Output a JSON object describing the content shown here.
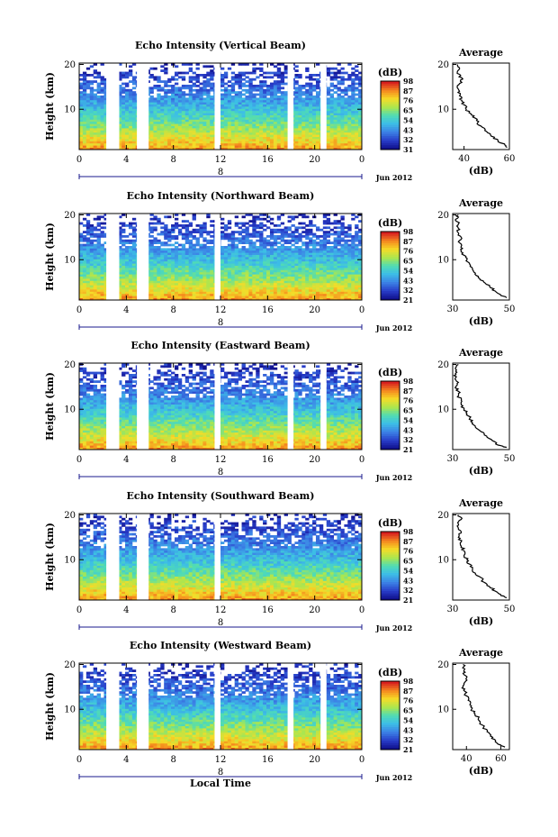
{
  "chart_data": [
    {
      "type": "heatmap",
      "title": "Echo Intensity (Vertical Beam)",
      "ylabel": "Height (km)",
      "yticks": [
        10,
        20
      ],
      "ylim": [
        1,
        20.3
      ],
      "xticks": [
        "0",
        "4",
        "8",
        "12",
        "16",
        "20",
        "0"
      ],
      "xlim": [
        0,
        24
      ],
      "day_label": "8",
      "month_label": "Jun 2012",
      "colorbar": {
        "label": "(dB)",
        "ticks": [
          "31",
          "32",
          "43",
          "54",
          "65",
          "76",
          "87",
          "98"
        ],
        "range": [
          31,
          98
        ]
      },
      "data_gaps_hours": [
        [
          2.3,
          3.4
        ],
        [
          4.9,
          5.9
        ],
        [
          11.5,
          12.0
        ],
        [
          17.7,
          18.2
        ],
        [
          20.5,
          21.0
        ]
      ],
      "average_profile": {
        "title": "Average",
        "xlabel": "(dB)",
        "xticks": [
          "40",
          "60"
        ],
        "xlim": [
          35,
          60
        ],
        "yticks": [
          "10",
          "20"
        ],
        "height_km": [
          1.5,
          2,
          3,
          4,
          5,
          6,
          7,
          8,
          9,
          10,
          11,
          12,
          13,
          14,
          15,
          16,
          17,
          18,
          19,
          20
        ],
        "db": [
          59,
          58,
          55,
          52,
          50,
          48,
          46,
          45,
          43,
          41,
          40,
          39,
          38,
          38,
          37,
          39,
          39,
          37,
          38,
          37
        ]
      }
    },
    {
      "type": "heatmap",
      "title": "Echo Intensity (Northward Beam)",
      "ylabel": "Height (km)",
      "yticks": [
        10,
        20
      ],
      "ylim": [
        1,
        20.3
      ],
      "xticks": [
        "0",
        "4",
        "8",
        "12",
        "16",
        "20",
        "0"
      ],
      "xlim": [
        0,
        24
      ],
      "day_label": "8",
      "month_label": "Jun 2012",
      "colorbar": {
        "label": "(dB)",
        "ticks": [
          "21",
          "32",
          "43",
          "54",
          "65",
          "76",
          "87",
          "98"
        ],
        "range": [
          21,
          98
        ]
      },
      "data_gaps_hours": [
        [
          2.3,
          3.4
        ],
        [
          4.9,
          5.9
        ],
        [
          11.5,
          12.0
        ]
      ],
      "average_profile": {
        "title": "Average",
        "xlabel": "(dB)",
        "xticks": [
          "30",
          "50"
        ],
        "xlim": [
          30,
          50
        ],
        "yticks": [
          "10",
          "20"
        ],
        "height_km": [
          1.5,
          2,
          3,
          4,
          5,
          6,
          7,
          8,
          9,
          10,
          11,
          12,
          13,
          14,
          15,
          16,
          17,
          18,
          19,
          20
        ],
        "db": [
          49,
          47,
          45,
          43,
          41,
          39,
          38,
          37,
          36,
          35,
          34,
          33,
          33,
          32,
          33,
          32,
          32,
          32,
          31,
          32
        ]
      }
    },
    {
      "type": "heatmap",
      "title": "Echo Intensity (Eastward Beam)",
      "ylabel": "Height (km)",
      "yticks": [
        10,
        20
      ],
      "ylim": [
        1,
        20.3
      ],
      "xticks": [
        "0",
        "4",
        "8",
        "12",
        "16",
        "20",
        "0"
      ],
      "xlim": [
        0,
        24
      ],
      "day_label": "8",
      "month_label": "Jun 2012",
      "colorbar": {
        "label": "(dB)",
        "ticks": [
          "21",
          "32",
          "43",
          "54",
          "65",
          "76",
          "87",
          "98"
        ],
        "range": [
          21,
          98
        ]
      },
      "data_gaps_hours": [
        [
          2.3,
          3.4
        ],
        [
          4.9,
          5.9
        ],
        [
          11.5,
          12.0
        ],
        [
          17.7,
          18.2
        ],
        [
          20.5,
          21.0
        ]
      ],
      "average_profile": {
        "title": "Average",
        "xlabel": "(dB)",
        "xticks": [
          "30",
          "50"
        ],
        "xlim": [
          30,
          50
        ],
        "yticks": [
          "10",
          "20"
        ],
        "height_km": [
          1.5,
          2,
          3,
          4,
          5,
          6,
          7,
          8,
          9,
          10,
          11,
          12,
          13,
          14,
          15,
          16,
          17,
          18,
          19,
          20
        ],
        "db": [
          49,
          46,
          44,
          42,
          40,
          38,
          37,
          36,
          35,
          34,
          33,
          33,
          32,
          32,
          31,
          32,
          31,
          31,
          31,
          32
        ]
      }
    },
    {
      "type": "heatmap",
      "title": "Echo Intensity (Southward Beam)",
      "ylabel": "Height (km)",
      "yticks": [
        10,
        20
      ],
      "ylim": [
        1,
        20.3
      ],
      "xticks": [
        "0",
        "4",
        "8",
        "12",
        "16",
        "20",
        "0"
      ],
      "xlim": [
        0,
        24
      ],
      "day_label": "8",
      "month_label": "Jun 2012",
      "colorbar": {
        "label": "(dB)",
        "ticks": [
          "21",
          "32",
          "43",
          "54",
          "65",
          "76",
          "87",
          "98"
        ],
        "range": [
          21,
          98
        ]
      },
      "data_gaps_hours": [
        [
          2.3,
          3.4
        ],
        [
          4.9,
          5.9
        ],
        [
          11.5,
          12.0
        ]
      ],
      "average_profile": {
        "title": "Average",
        "xlabel": "(dB)",
        "xticks": [
          "30",
          "50"
        ],
        "xlim": [
          30,
          50
        ],
        "yticks": [
          "10",
          "20"
        ],
        "height_km": [
          1.5,
          2,
          3,
          4,
          5,
          6,
          7,
          8,
          9,
          10,
          11,
          12,
          13,
          14,
          15,
          16,
          17,
          18,
          19,
          20
        ],
        "db": [
          49,
          47,
          45,
          43,
          41,
          40,
          38,
          37,
          36,
          35,
          34,
          34,
          33,
          33,
          32,
          33,
          32,
          32,
          33,
          32
        ]
      }
    },
    {
      "type": "heatmap",
      "title": "Echo Intensity (Westward Beam)",
      "ylabel": "Height (km)",
      "yticks": [
        10,
        20
      ],
      "ylim": [
        1,
        20.3
      ],
      "xticks": [
        "0",
        "4",
        "8",
        "12",
        "16",
        "20",
        "0"
      ],
      "xlim": [
        0,
        24
      ],
      "xlabel": "Local Time",
      "day_label": "8",
      "month_label": "Jun 2012",
      "colorbar": {
        "label": "(dB)",
        "ticks": [
          "21",
          "32",
          "43",
          "54",
          "65",
          "76",
          "87",
          "98"
        ],
        "range": [
          21,
          98
        ]
      },
      "data_gaps_hours": [
        [
          2.3,
          3.4
        ],
        [
          4.9,
          5.9
        ],
        [
          11.5,
          12.0
        ],
        [
          17.7,
          18.2
        ],
        [
          20.5,
          21.0
        ]
      ],
      "average_profile": {
        "title": "Average",
        "xlabel": "(dB)",
        "xticks": [
          "40",
          "60"
        ],
        "xlim": [
          32,
          65
        ],
        "yticks": [
          "10",
          "20"
        ],
        "height_km": [
          1.5,
          2,
          3,
          4,
          5,
          6,
          7,
          8,
          9,
          10,
          11,
          12,
          13,
          14,
          15,
          16,
          17,
          18,
          19,
          20
        ],
        "db": [
          62,
          60,
          57,
          54,
          52,
          50,
          48,
          47,
          45,
          43,
          42,
          41,
          40,
          39,
          38,
          39,
          40,
          38,
          39,
          38
        ]
      }
    }
  ]
}
